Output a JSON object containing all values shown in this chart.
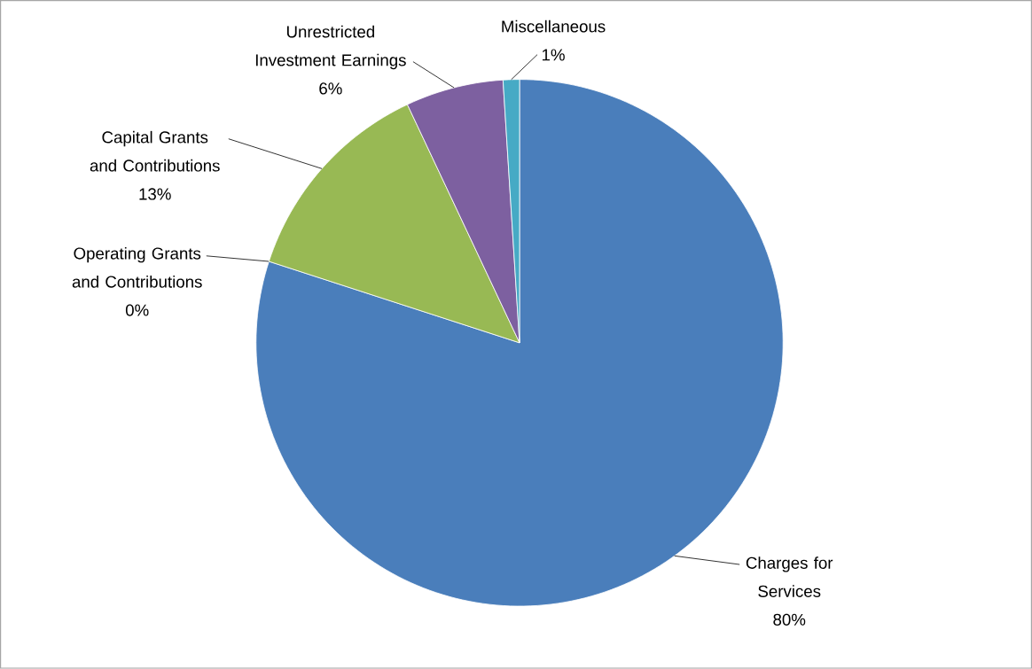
{
  "chart_data": {
    "type": "pie",
    "categories": [
      "Charges for Services",
      "Operating Grants and Contributions",
      "Capital Grants and Contributions",
      "Unrestricted Investment Earnings",
      "Miscellaneous"
    ],
    "values": [
      80,
      0,
      13,
      6,
      1
    ],
    "value_labels": [
      "80%",
      "0%",
      "13%",
      "6%",
      "1%"
    ],
    "colors": [
      "#4a7ebb",
      "#be4b48",
      "#98b954",
      "#7d60a0",
      "#46aac5"
    ]
  }
}
